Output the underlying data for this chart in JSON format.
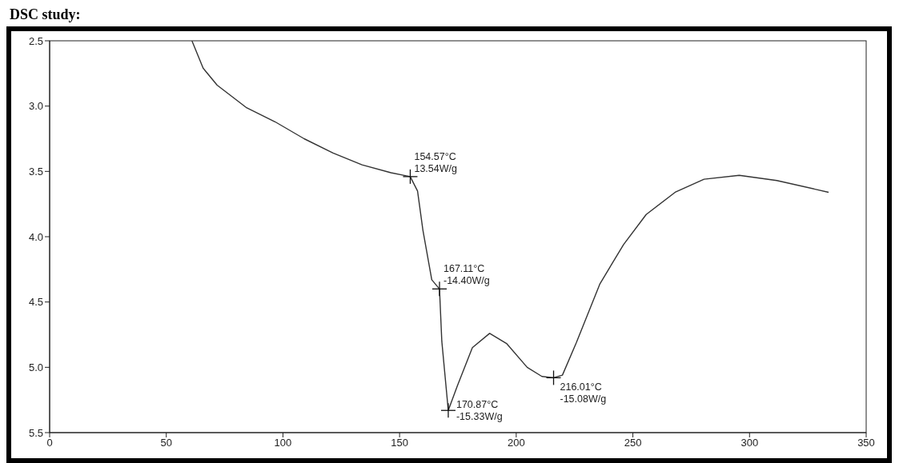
{
  "chart_data": {
    "type": "line",
    "title": "DSC study:",
    "xlim": [
      0,
      350
    ],
    "xticks": [
      0,
      50,
      100,
      150,
      200,
      250,
      300,
      350
    ],
    "ylim": [
      5.5,
      2.5
    ],
    "yticks": [
      {
        "value": 2.5,
        "label": "2.5"
      },
      {
        "value": 3.0,
        "label": "3.0"
      },
      {
        "value": 3.5,
        "label": "3.5"
      },
      {
        "value": 4.0,
        "label": "4.0"
      },
      {
        "value": 4.5,
        "label": "4.5"
      },
      {
        "value": 5.0,
        "label": "5.0"
      },
      {
        "value": 5.5,
        "label": "5.5"
      }
    ],
    "grid": false,
    "legend": false,
    "marker": "none",
    "line_style": "solid",
    "series": [
      {
        "color": "#333333",
        "x": [
          61,
          65.8,
          71.8,
          84.2,
          96.6,
          109.1,
          121.5,
          133.9,
          146.3,
          154.57,
          157.7,
          160,
          163.8,
          167.11,
          168.1,
          170.87,
          174.8,
          181.2,
          188.6,
          196,
          204.7,
          211,
          216.01,
          219.8,
          225.8,
          235.9,
          246,
          255.7,
          268.1,
          280.5,
          295.6,
          311.7,
          333.9
        ],
        "values": [
          2.5,
          2.71,
          2.84,
          3.01,
          3.12,
          3.25,
          3.36,
          3.45,
          3.51,
          3.54,
          3.65,
          3.95,
          4.33,
          4.4,
          4.8,
          5.33,
          5.14,
          4.85,
          4.74,
          4.82,
          5.0,
          5.07,
          5.08,
          5.06,
          4.81,
          4.36,
          4.06,
          3.83,
          3.66,
          3.56,
          3.53,
          3.57,
          3.66
        ]
      }
    ],
    "annotations": [
      {
        "text": "154.57°C\n13.54W/g",
        "x": 154.57,
        "y": 3.54
      },
      {
        "text": "167.11°C\n-14.40W/g",
        "x": 167.11,
        "y": 4.4
      },
      {
        "text": "170.87°C\n-15.33W/g",
        "x": 170.87,
        "y": 5.33
      },
      {
        "text": "216.01°C\n-15.08W/g",
        "x": 216.01,
        "y": 5.08
      }
    ]
  }
}
